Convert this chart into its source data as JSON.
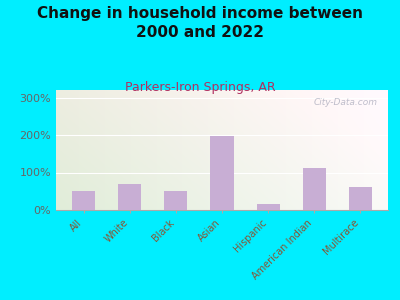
{
  "title": "Change in household income between\n2000 and 2022",
  "subtitle": "Parkers-Iron Springs, AR",
  "categories": [
    "All",
    "White",
    "Black",
    "Asian",
    "Hispanic",
    "American Indian",
    "Multirace"
  ],
  "values": [
    50,
    70,
    52,
    198,
    15,
    112,
    62
  ],
  "bar_color": "#c8aed4",
  "title_fontsize": 11,
  "subtitle_fontsize": 9,
  "subtitle_color": "#b03060",
  "background_outer": "#00eeff",
  "ylim": [
    0,
    320
  ],
  "yticks": [
    0,
    100,
    200,
    300
  ],
  "ytick_labels": [
    "0%",
    "100%",
    "200%",
    "300%"
  ],
  "ytick_color": "#666666",
  "xtick_color": "#885533",
  "watermark": "City-Data.com",
  "grid_color": "#dddddd",
  "plot_left_color": "#cce8b0",
  "plot_right_color": "#f8faee"
}
